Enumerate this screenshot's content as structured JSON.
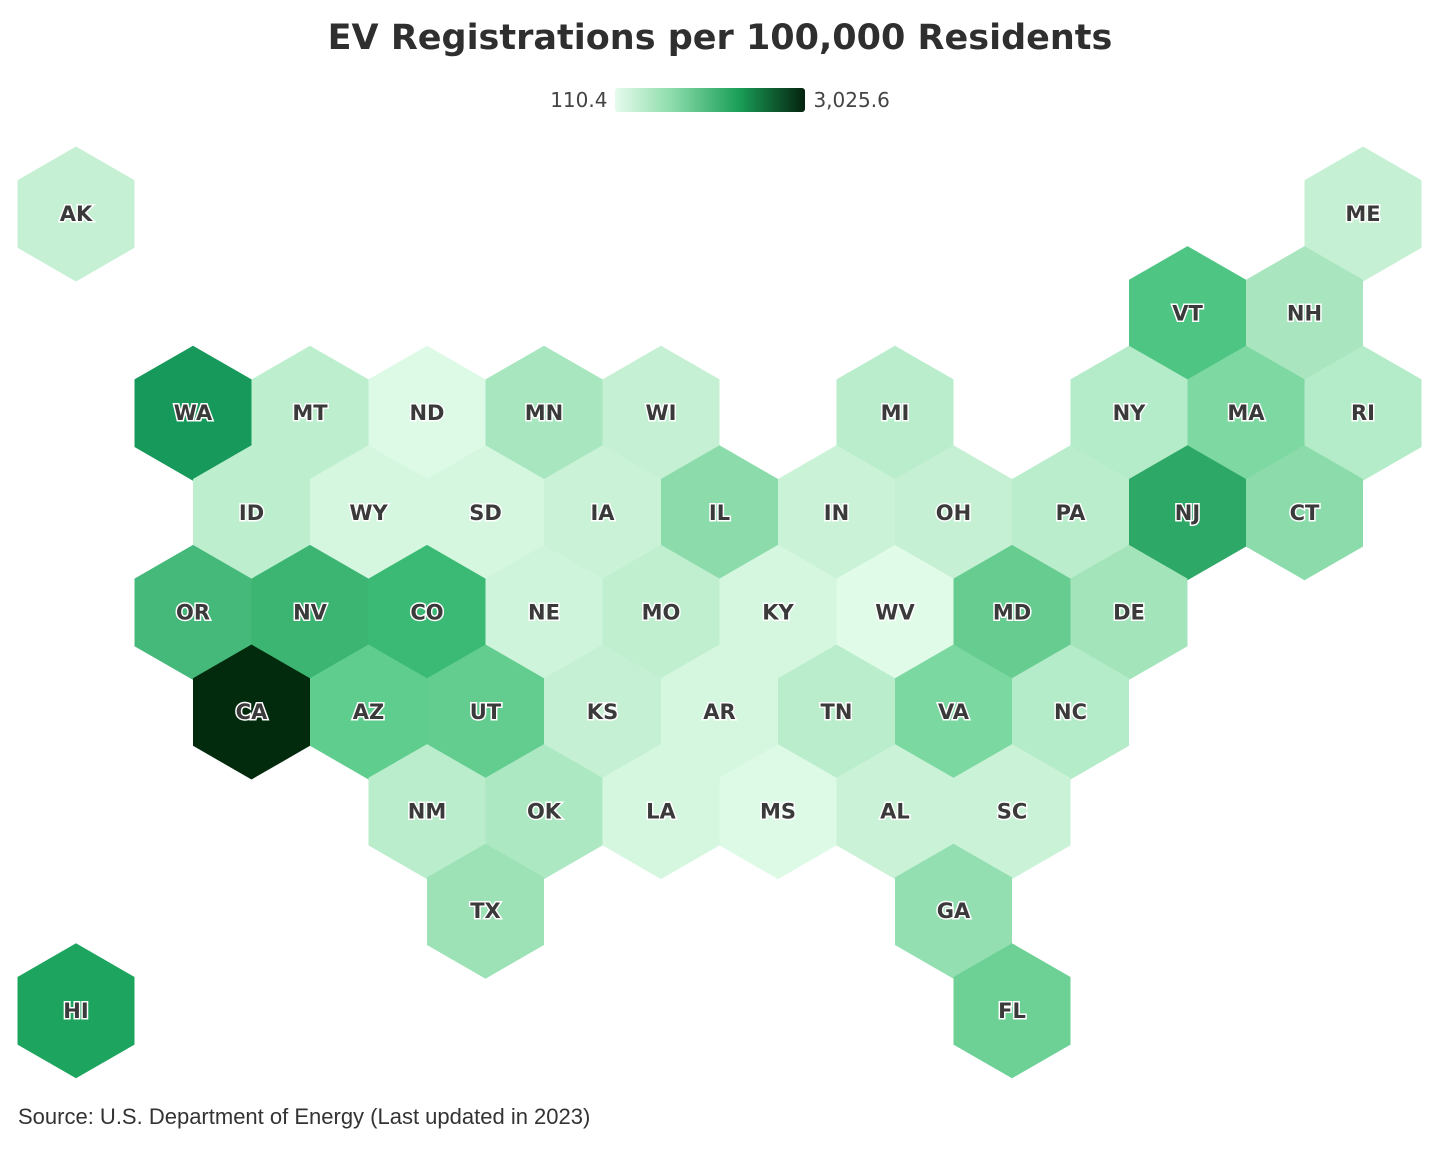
{
  "title": "EV Registrations per 100,000 Residents",
  "legend": {
    "min_label": "110.4",
    "max_label": "3,025.6",
    "min_value": 110.4,
    "max_value": 3025.6,
    "colors": [
      "#e6fbec",
      "#8cdcab",
      "#1a9f58",
      "#05220f"
    ]
  },
  "source": "Source: U.S. Department of Energy (Last updated in 2023)",
  "chart_data": {
    "type": "hex-tile choropleth",
    "title": "EV Registrations per 100,000 Residents",
    "states": [
      {
        "abbr": "AK",
        "row": 0,
        "col": 0,
        "color": "#c5f0d3"
      },
      {
        "abbr": "ME",
        "row": 0,
        "col": 11,
        "color": "#c5f0d3"
      },
      {
        "abbr": "VT",
        "row": 1,
        "col": 9.5,
        "color": "#4fc584"
      },
      {
        "abbr": "NH",
        "row": 1,
        "col": 10.5,
        "color": "#a9e6bf"
      },
      {
        "abbr": "WA",
        "row": 2,
        "col": 1,
        "color": "#16995a"
      },
      {
        "abbr": "MT",
        "row": 2,
        "col": 2,
        "color": "#bdefcf"
      },
      {
        "abbr": "ND",
        "row": 2,
        "col": 3,
        "color": "#dcfae6"
      },
      {
        "abbr": "MN",
        "row": 2,
        "col": 4,
        "color": "#a8e6bf"
      },
      {
        "abbr": "WI",
        "row": 2,
        "col": 5,
        "color": "#c5f0d3"
      },
      {
        "abbr": "MI",
        "row": 2,
        "col": 7,
        "color": "#b9edcb"
      },
      {
        "abbr": "NY",
        "row": 2,
        "col": 9,
        "color": "#b4ebc8"
      },
      {
        "abbr": "MA",
        "row": 2,
        "col": 10,
        "color": "#7dd8a2"
      },
      {
        "abbr": "RI",
        "row": 2,
        "col": 11,
        "color": "#b4ebc8"
      },
      {
        "abbr": "ID",
        "row": 3,
        "col": 1.5,
        "color": "#bdefcf"
      },
      {
        "abbr": "WY",
        "row": 3,
        "col": 2.5,
        "color": "#d5f7e0"
      },
      {
        "abbr": "SD",
        "row": 3,
        "col": 3.5,
        "color": "#d5f7e0"
      },
      {
        "abbr": "IA",
        "row": 3,
        "col": 4.5,
        "color": "#c9f2d6"
      },
      {
        "abbr": "IL",
        "row": 3,
        "col": 5.5,
        "color": "#8cdcab"
      },
      {
        "abbr": "IN",
        "row": 3,
        "col": 6.5,
        "color": "#c9f2d6"
      },
      {
        "abbr": "OH",
        "row": 3,
        "col": 7.5,
        "color": "#c5f0d3"
      },
      {
        "abbr": "PA",
        "row": 3,
        "col": 8.5,
        "color": "#b9edcb"
      },
      {
        "abbr": "NJ",
        "row": 3,
        "col": 9.5,
        "color": "#2ea866"
      },
      {
        "abbr": "CT",
        "row": 3,
        "col": 10.5,
        "color": "#8cdcab"
      },
      {
        "abbr": "OR",
        "row": 4,
        "col": 1,
        "color": "#44b97a"
      },
      {
        "abbr": "NV",
        "row": 4,
        "col": 2,
        "color": "#3cb573"
      },
      {
        "abbr": "CO",
        "row": 4,
        "col": 3,
        "color": "#3aba74"
      },
      {
        "abbr": "NE",
        "row": 4,
        "col": 4,
        "color": "#cff4dc"
      },
      {
        "abbr": "MO",
        "row": 4,
        "col": 5,
        "color": "#c0efd0"
      },
      {
        "abbr": "KY",
        "row": 4,
        "col": 6,
        "color": "#d5f7e0"
      },
      {
        "abbr": "WV",
        "row": 4,
        "col": 7,
        "color": "#e0fbe8"
      },
      {
        "abbr": "MD",
        "row": 4,
        "col": 8,
        "color": "#66cc90"
      },
      {
        "abbr": "DE",
        "row": 4,
        "col": 9,
        "color": "#a4e4bb"
      },
      {
        "abbr": "CA",
        "row": 5,
        "col": 1.5,
        "color": "#022b0d"
      },
      {
        "abbr": "AZ",
        "row": 5,
        "col": 2.5,
        "color": "#5fcd8e"
      },
      {
        "abbr": "UT",
        "row": 5,
        "col": 3.5,
        "color": "#63cd90"
      },
      {
        "abbr": "KS",
        "row": 5,
        "col": 4.5,
        "color": "#c5f0d3"
      },
      {
        "abbr": "AR",
        "row": 5,
        "col": 5.5,
        "color": "#d5f7e0"
      },
      {
        "abbr": "TN",
        "row": 5,
        "col": 6.5,
        "color": "#b9edcb"
      },
      {
        "abbr": "VA",
        "row": 5,
        "col": 7.5,
        "color": "#7ad8a0"
      },
      {
        "abbr": "NC",
        "row": 5,
        "col": 8.5,
        "color": "#b4ebc8"
      },
      {
        "abbr": "NM",
        "row": 6,
        "col": 3,
        "color": "#b9edcb"
      },
      {
        "abbr": "OK",
        "row": 6,
        "col": 4,
        "color": "#ace8c2"
      },
      {
        "abbr": "LA",
        "row": 6,
        "col": 5,
        "color": "#d5f7e0"
      },
      {
        "abbr": "MS",
        "row": 6,
        "col": 6,
        "color": "#dcfae6"
      },
      {
        "abbr": "AL",
        "row": 6,
        "col": 7,
        "color": "#c9f2d6"
      },
      {
        "abbr": "SC",
        "row": 6,
        "col": 8,
        "color": "#c9f2d6"
      },
      {
        "abbr": "TX",
        "row": 7,
        "col": 3.5,
        "color": "#9de2b6"
      },
      {
        "abbr": "GA",
        "row": 7,
        "col": 7.5,
        "color": "#94dfb1"
      },
      {
        "abbr": "HI",
        "row": 8,
        "col": 0,
        "color": "#1da55f"
      },
      {
        "abbr": "FL",
        "row": 8,
        "col": 8,
        "color": "#6dd196"
      }
    ]
  }
}
